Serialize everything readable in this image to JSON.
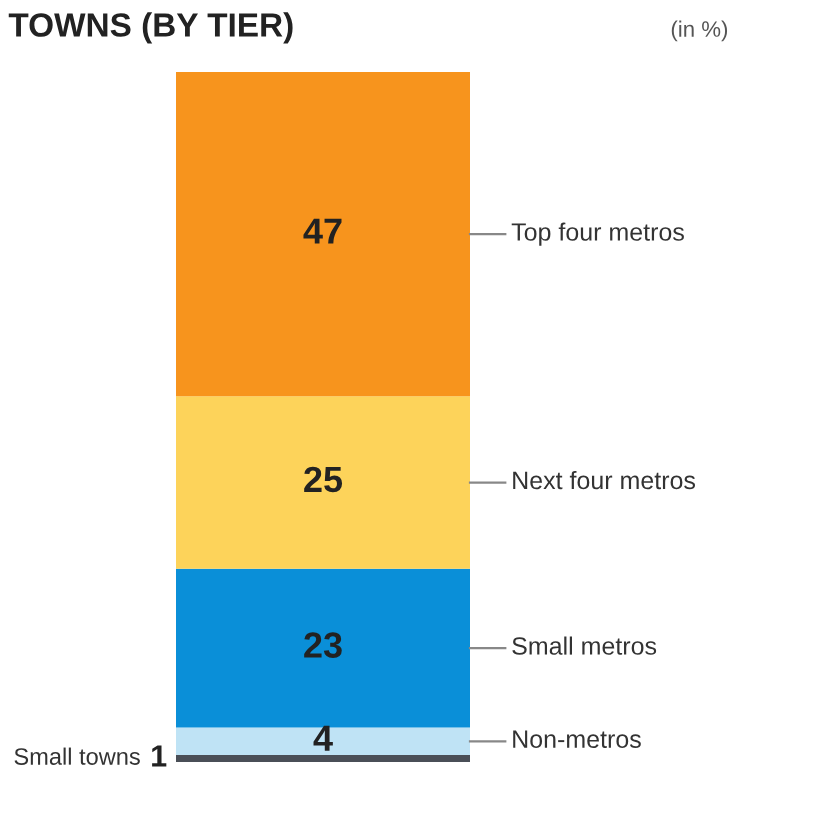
{
  "chart_data": {
    "type": "bar",
    "stacked": true,
    "title": "TOWNS (BY TIER)",
    "annotations": [
      "(in %)"
    ],
    "categories": [
      null
    ],
    "data_labels": true,
    "series": [
      {
        "name": "Small towns",
        "color": "#4a4f57",
        "values": [
          1
        ]
      },
      {
        "name": "Non-metros",
        "color": "#bfe3f5",
        "values": [
          4
        ]
      },
      {
        "name": "Small metros",
        "color": "#0a8fd8",
        "values": [
          23
        ]
      },
      {
        "name": "Next four metros",
        "color": "#fdd35a",
        "values": [
          25
        ]
      },
      {
        "name": "Top four metros",
        "color": "#f7941d",
        "values": [
          47
        ]
      }
    ]
  }
}
